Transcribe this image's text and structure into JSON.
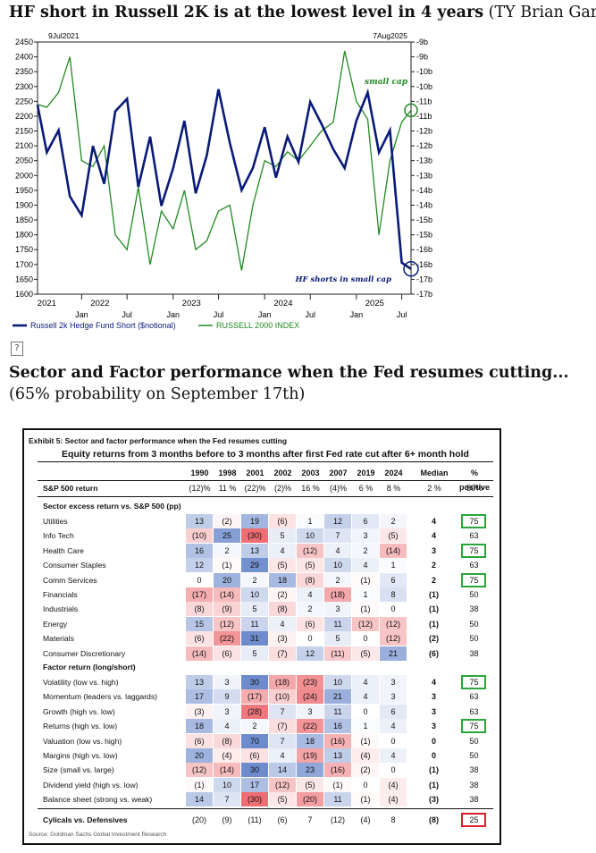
{
  "header1": {
    "title_bold": "HF short in Russell 2K is at the lowest level in 4 years",
    "title_rest": " (TY Brian Garrett)"
  },
  "broken_image_icon": "broken-image-icon",
  "header2": {
    "title_bold": "Sector and Factor performance when the Fed resumes cutting...",
    "title_rest": "(65% probability on September 17th)"
  },
  "chart_data": [
    {
      "type": "line",
      "title": "",
      "colors": {
        "hedge_fund_short": "#0a1a78",
        "russell_2000": "#1f8a1f"
      },
      "date_labels": {
        "start": "9Jul2021",
        "end": "7Aug2025"
      },
      "left_axis": {
        "ylim": [
          1600,
          2450
        ],
        "ticks": [
          "1600",
          "1650",
          "1700",
          "1750",
          "1800",
          "1850",
          "1900",
          "1950",
          "2000",
          "2050",
          "2100",
          "2150",
          "2200",
          "2250",
          "2300",
          "2350",
          "2400",
          "2450"
        ]
      },
      "right_axis": {
        "ylim": [
          -17,
          -9
        ],
        "ticks": [
          "-9b",
          "-9b",
          "-10b",
          "-10b",
          "-11b",
          "-11b",
          "-12b",
          "-12b",
          "-13b",
          "-13b",
          "-14b",
          "-14b",
          "-15b",
          "-15b",
          "-16b",
          "-16b",
          "-17b",
          "-17b"
        ]
      },
      "x_range": [
        "2021-07-09",
        "2025-08-07"
      ],
      "month_ticks": [
        {
          "label": "Jan",
          "date": "2022-01-01"
        },
        {
          "label": "Jul",
          "date": "2022-07-01"
        },
        {
          "label": "Jan",
          "date": "2023-01-01"
        },
        {
          "label": "Jul",
          "date": "2023-07-01"
        },
        {
          "label": "Jan",
          "date": "2024-01-01"
        },
        {
          "label": "Jul",
          "date": "2024-07-01"
        },
        {
          "label": "Jan",
          "date": "2025-01-01"
        },
        {
          "label": "Jul",
          "date": "2025-07-01"
        }
      ],
      "year_labels": [
        {
          "label": "2021",
          "date": "2021-08-15"
        },
        {
          "label": "2022",
          "date": "2022-03-15"
        },
        {
          "label": "2023",
          "date": "2023-03-15"
        },
        {
          "label": "2024",
          "date": "2024-03-15"
        },
        {
          "label": "2025",
          "date": "2025-03-15"
        }
      ],
      "annotations": {
        "small_cap": "small cap",
        "hf_shorts": "HF shorts in small cap"
      },
      "series": [
        {
          "name": "Russell 2k Hedge Fund Short ($notional)",
          "axis": "right",
          "x": [
            "2021-07-09",
            "2021-08-15",
            "2021-10-01",
            "2021-11-15",
            "2022-01-01",
            "2022-02-15",
            "2022-04-01",
            "2022-05-15",
            "2022-07-01",
            "2022-08-15",
            "2022-10-01",
            "2022-11-15",
            "2023-01-01",
            "2023-02-15",
            "2023-04-01",
            "2023-05-15",
            "2023-07-01",
            "2023-08-15",
            "2023-10-01",
            "2023-11-15",
            "2024-01-01",
            "2024-02-15",
            "2024-04-01",
            "2024-05-15",
            "2024-07-01",
            "2024-08-15",
            "2024-10-01",
            "2024-11-15",
            "2025-01-01",
            "2025-02-15",
            "2025-04-01",
            "2025-05-15",
            "2025-07-01",
            "2025-08-07"
          ],
          "values": [
            -11.0,
            -12.5,
            -11.8,
            -13.9,
            -14.5,
            -12.3,
            -13.5,
            -11.2,
            -10.8,
            -13.6,
            -12.0,
            -14.2,
            -13.0,
            -11.5,
            -13.8,
            -12.6,
            -10.5,
            -12.2,
            -13.7,
            -13.0,
            -11.7,
            -13.3,
            -12.0,
            -12.8,
            -10.9,
            -11.6,
            -12.4,
            -13.0,
            -11.5,
            -10.6,
            -12.5,
            -11.8,
            -16.0,
            -16.2
          ]
        },
        {
          "name": "RUSSELL 2000 INDEX",
          "axis": "left",
          "x": [
            "2021-07-09",
            "2021-08-15",
            "2021-10-01",
            "2021-11-15",
            "2022-01-01",
            "2022-02-15",
            "2022-04-01",
            "2022-05-15",
            "2022-07-01",
            "2022-08-15",
            "2022-10-01",
            "2022-11-15",
            "2023-01-01",
            "2023-02-15",
            "2023-04-01",
            "2023-05-15",
            "2023-07-01",
            "2023-08-15",
            "2023-10-01",
            "2023-11-15",
            "2024-01-01",
            "2024-02-15",
            "2024-04-01",
            "2024-05-15",
            "2024-07-01",
            "2024-08-15",
            "2024-10-01",
            "2024-11-15",
            "2025-01-01",
            "2025-02-15",
            "2025-04-01",
            "2025-05-15",
            "2025-07-01",
            "2025-08-07"
          ],
          "values": [
            2240,
            2230,
            2280,
            2400,
            2050,
            2030,
            2100,
            1800,
            1750,
            1960,
            1700,
            1880,
            1820,
            1950,
            1750,
            1780,
            1880,
            1900,
            1680,
            1900,
            2050,
            2030,
            2080,
            2050,
            2100,
            2150,
            2180,
            2420,
            2250,
            2190,
            1800,
            2050,
            2180,
            2220
          ]
        }
      ]
    },
    {
      "type": "table",
      "exhibit_title": "Exhibit 5: Sector and factor performance when the Fed resumes cutting",
      "subtitle": "Equity returns from 3 months before to 3 months after first Fed rate cut after 6+ month hold",
      "source": "Source: Goldman Sachs Global Investment Research",
      "columns": [
        "1990",
        "1998",
        "2001",
        "2002",
        "2003",
        "2007",
        "2019",
        "2024",
        "Median",
        "% positive"
      ],
      "sp500": {
        "label": "S&P 500 return",
        "values": [
          "(12)%",
          "11 %",
          "(22)%",
          "(2)%",
          "16 %",
          "(4)%",
          "6 %",
          "8 %",
          "2 %",
          "50%"
        ]
      },
      "sector_heading": "Sector excess return vs. S&P 500 (pp)",
      "sectors": [
        {
          "label": "Utilities",
          "values": [
            13,
            -2,
            19,
            -6,
            1,
            12,
            6,
            2
          ],
          "median": 4,
          "pct": 75,
          "highlight": "green"
        },
        {
          "label": "Info Tech",
          "values": [
            -10,
            25,
            -30,
            5,
            10,
            7,
            3,
            -5
          ],
          "median": 4,
          "pct": 63
        },
        {
          "label": "Health Care",
          "values": [
            16,
            2,
            13,
            4,
            -12,
            4,
            2,
            -14
          ],
          "median": 3,
          "pct": 75,
          "highlight": "green"
        },
        {
          "label": "Consumer Staples",
          "values": [
            12,
            -1,
            29,
            -5,
            -5,
            10,
            4,
            1
          ],
          "median": 2,
          "pct": 63
        },
        {
          "label": "Comm Services",
          "values": [
            0,
            20,
            2,
            18,
            -8,
            2,
            -1,
            6
          ],
          "median": 2,
          "pct": 75,
          "highlight": "green"
        },
        {
          "label": "Financials",
          "values": [
            -17,
            -14,
            10,
            -2,
            4,
            -18,
            1,
            8
          ],
          "median": -1,
          "pct": 50
        },
        {
          "label": "Industrials",
          "values": [
            -8,
            -9,
            5,
            -8,
            2,
            3,
            -1,
            0
          ],
          "median": -1,
          "pct": 38
        },
        {
          "label": "Energy",
          "values": [
            15,
            -12,
            11,
            4,
            -6,
            11,
            -12,
            -12
          ],
          "median": -1,
          "pct": 50
        },
        {
          "label": "Materials",
          "values": [
            -6,
            -22,
            31,
            -3,
            0,
            5,
            0,
            -12
          ],
          "median": -2,
          "pct": 50
        },
        {
          "label": "Consumer Discretionary",
          "values": [
            -14,
            -6,
            5,
            -7,
            12,
            -11,
            -5,
            21
          ],
          "median": -6,
          "pct": 38
        }
      ],
      "factor_heading": "Factor return (long/short)",
      "factors": [
        {
          "label": "Volatility (low vs. high)",
          "values": [
            13,
            3,
            30,
            -18,
            -23,
            10,
            4,
            3
          ],
          "median": 4,
          "pct": 75,
          "highlight": "green"
        },
        {
          "label": "Momentum (leaders vs. laggards)",
          "values": [
            17,
            9,
            -17,
            -10,
            -24,
            21,
            4,
            3
          ],
          "median": 3,
          "pct": 63
        },
        {
          "label": "Growth (high vs. low)",
          "values": [
            -3,
            3,
            -28,
            7,
            3,
            11,
            0,
            6
          ],
          "median": 3,
          "pct": 63
        },
        {
          "label": "Returns (high vs. low)",
          "values": [
            18,
            4,
            2,
            -7,
            -22,
            16,
            1,
            4
          ],
          "median": 3,
          "pct": 75,
          "highlight": "green"
        },
        {
          "label": "Valuation (low vs. high)",
          "values": [
            -6,
            -8,
            70,
            7,
            18,
            -16,
            -1,
            0
          ],
          "median": 0,
          "pct": 50
        },
        {
          "label": "Margins (high vs. low)",
          "values": [
            20,
            -4,
            -6,
            4,
            -19,
            13,
            -4,
            4
          ],
          "median": 0,
          "pct": 50
        },
        {
          "label": "Size (small vs. large)",
          "values": [
            -12,
            -14,
            30,
            14,
            23,
            -16,
            -2,
            0
          ],
          "median": -1,
          "pct": 38
        },
        {
          "label": "Dividend yield (high vs. low)",
          "values": [
            -1,
            10,
            17,
            -12,
            -5,
            -1,
            0,
            -4
          ],
          "median": -1,
          "pct": 38
        },
        {
          "label": "Balance sheet (strong vs. weak)",
          "values": [
            14,
            7,
            -30,
            -5,
            -20,
            11,
            -1,
            -4
          ],
          "median": -3,
          "pct": 38
        }
      ],
      "cyclicals": {
        "label": "Cylicals vs. Defensives",
        "values": [
          -20,
          -9,
          -11,
          -6,
          7,
          -12,
          -4,
          8
        ],
        "median": -8,
        "pct": 25,
        "highlight": "red"
      }
    }
  ]
}
